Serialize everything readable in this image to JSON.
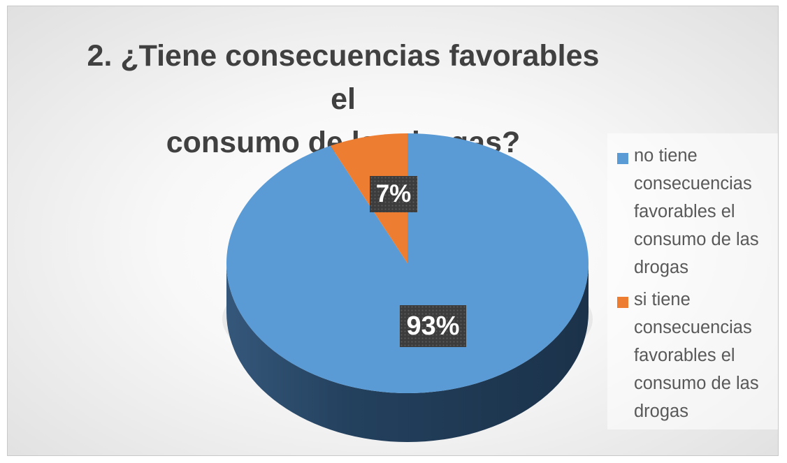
{
  "chart_data": {
    "type": "pie",
    "title": "2. ¿Tiene consecuencias favorables el consumo de las drogas?",
    "title_lines": [
      "2. ¿Tiene consecuencias favorables el",
      "consumo de las drogas?"
    ],
    "legend_position": "right",
    "categories": [
      "no tiene consecuencias favorables el consumo de las drogas",
      "si tiene consecuencias favorables el consumo de las drogas"
    ],
    "values": [
      93,
      7
    ],
    "data_labels": [
      "93%",
      "7%"
    ],
    "colors": [
      "#5b9bd5",
      "#ed7d31"
    ],
    "style": "3d"
  }
}
